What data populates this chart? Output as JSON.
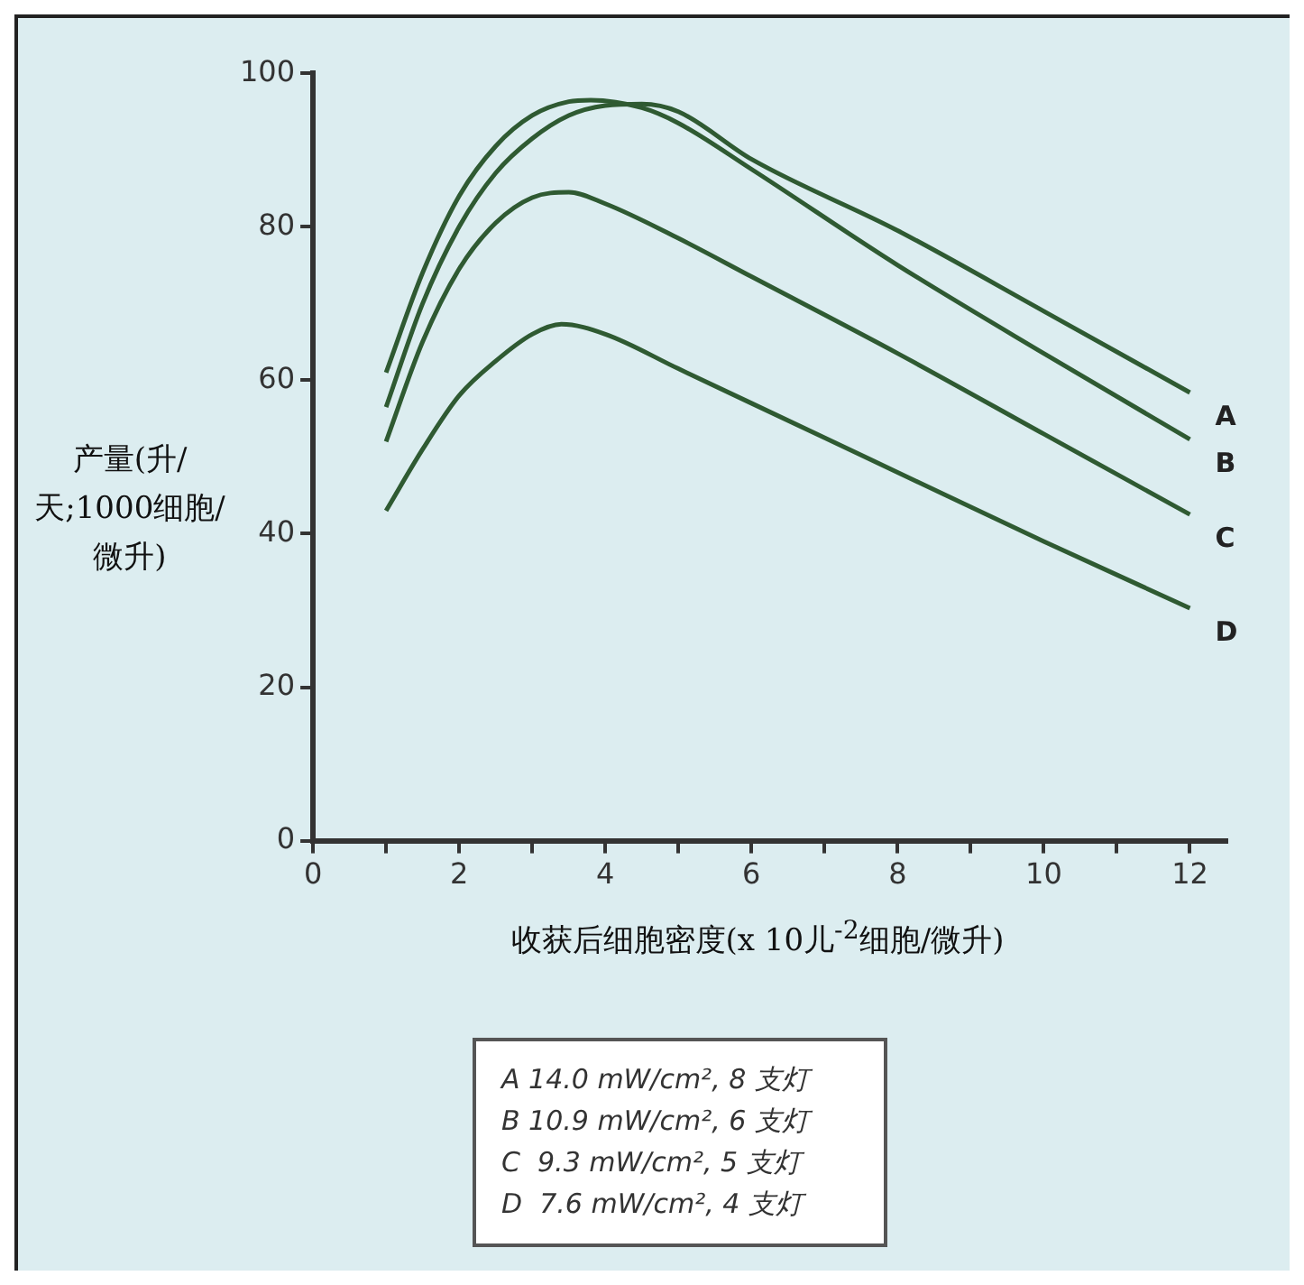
{
  "chart_data": {
    "type": "line",
    "xlabel": "收获后细胞密度(x 10儿$^{-2}$细胞/微升)",
    "ylabel": "产量(升/天;1000细胞/微升)",
    "xlim": [
      0,
      12.5
    ],
    "ylim": [
      0,
      100
    ],
    "xticks": [
      0,
      {
        "value": 1,
        "label": null
      },
      2,
      {
        "value": 3,
        "label": null
      },
      4,
      {
        "value": 5,
        "label": null
      },
      6,
      {
        "value": 7,
        "label": null
      },
      8,
      {
        "value": 9,
        "label": null
      },
      10,
      {
        "value": 11,
        "label": null
      },
      12
    ],
    "yticks": [
      0,
      20,
      40,
      60,
      80,
      100
    ],
    "grid": false,
    "legend": false,
    "marker": "none",
    "line_style": "solid",
    "series": [
      {
        "name": "A",
        "color": "#2f5a32",
        "x": [
          1,
          1.5,
          2,
          2.5,
          3,
          3.5,
          4,
          4.5,
          5,
          6,
          8,
          10,
          12
        ],
        "values": [
          56.5,
          70,
          80,
          87,
          91.5,
          94.5,
          95.8,
          96,
          95,
          88.8,
          79.5,
          69,
          58.4
        ]
      },
      {
        "name": "B",
        "color": "#2f5a32",
        "x": [
          1,
          1.5,
          2,
          2.5,
          3,
          3.5,
          3.8,
          4.5,
          5,
          6,
          8,
          10,
          12
        ],
        "values": [
          61,
          74,
          84,
          90.5,
          94.5,
          96.3,
          96.5,
          95.5,
          93.5,
          87.5,
          75,
          63.5,
          52.3
        ]
      },
      {
        "name": "C",
        "color": "#2f5a32",
        "x": [
          1,
          1.5,
          2,
          2.5,
          3,
          3.5,
          4,
          5,
          6,
          8,
          10,
          12
        ],
        "values": [
          52,
          65,
          74.5,
          80.5,
          83.8,
          84.5,
          83,
          78.5,
          73.5,
          63.5,
          53,
          42.5
        ]
      },
      {
        "name": "D",
        "color": "#2f5a32",
        "x": [
          1,
          1.5,
          2,
          2.5,
          3,
          3.4,
          4,
          5,
          6,
          8,
          10,
          12
        ],
        "values": [
          43,
          51,
          58,
          62.5,
          66,
          67.3,
          66,
          61.5,
          57,
          48,
          39,
          30.3
        ]
      }
    ],
    "annotations": [
      "A 14.0 mW/cm², 8 支灯",
      "B 10.9 mW/cm², 6 支灯",
      "C  9.3 mW/cm², 5 支灯",
      "D  7.6 mW/cm², 4 支灯"
    ]
  }
}
